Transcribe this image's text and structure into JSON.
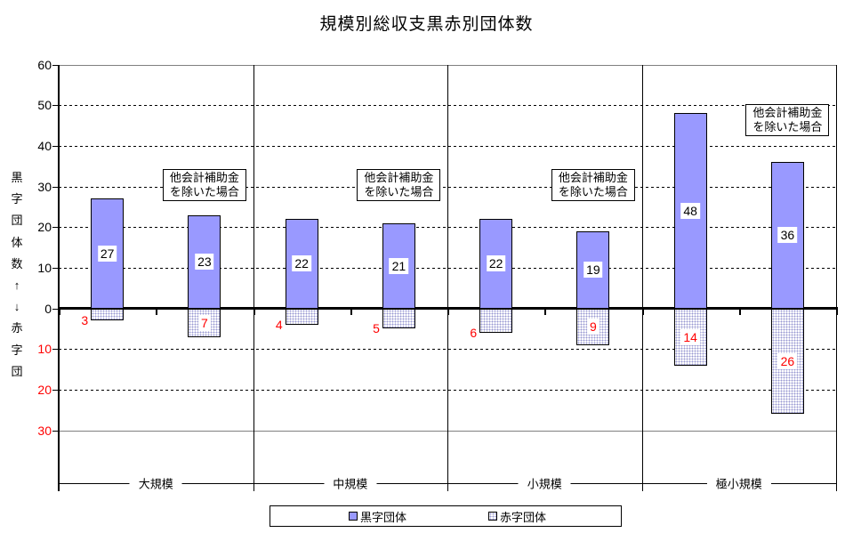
{
  "title": "規模別総収支黒赤別団体数",
  "y_axis": {
    "title": "黒字団体数↑↓赤字団",
    "positive_ticks": [
      60,
      50,
      40,
      30,
      20,
      10,
      0
    ],
    "negative_ticks": [
      10,
      20,
      30
    ],
    "negative_color": "#ff0000"
  },
  "legend": {
    "surplus_label": "黒字団体",
    "deficit_label": "赤字団体"
  },
  "annotation": {
    "line1": "他会計補助金",
    "line2": "を除いた場合"
  },
  "colors": {
    "surplus_fill": "#9999ff",
    "deficit_dot": "#9898d2",
    "negative_text": "#ff0000",
    "grid_gray": "#808080"
  },
  "chart_data": {
    "type": "bar",
    "title": "規模別総収支黒赤別団体数",
    "categories": [
      "大規模",
      "中規模",
      "小規模",
      "極小規模"
    ],
    "ylabel": "黒字団体数↑↓赤字団",
    "ylim": [
      -30,
      60
    ],
    "grid": true,
    "legend_position": "bottom",
    "annotation_text": "他会計補助金を除いた場合",
    "groups": [
      {
        "category": "大規模",
        "bars": [
          {
            "surplus": 27,
            "deficit": 3
          },
          {
            "surplus": 23,
            "deficit": 7,
            "annotation": true
          }
        ]
      },
      {
        "category": "中規模",
        "bars": [
          {
            "surplus": 22,
            "deficit": 4
          },
          {
            "surplus": 21,
            "deficit": 5,
            "annotation": true
          }
        ]
      },
      {
        "category": "小規模",
        "bars": [
          {
            "surplus": 22,
            "deficit": 6
          },
          {
            "surplus": 19,
            "deficit": 9,
            "annotation": true
          }
        ]
      },
      {
        "category": "極小規模",
        "bars": [
          {
            "surplus": 48,
            "deficit": 14
          },
          {
            "surplus": 36,
            "deficit": 26,
            "annotation": true
          }
        ]
      }
    ],
    "series": [
      {
        "name": "黒字団体",
        "values": [
          27,
          22,
          22,
          48
        ],
        "values_excluding_subsidy": [
          23,
          21,
          19,
          36
        ]
      },
      {
        "name": "赤字団体",
        "values": [
          3,
          4,
          6,
          14
        ],
        "values_excluding_subsidy": [
          7,
          5,
          9,
          26
        ]
      }
    ]
  }
}
